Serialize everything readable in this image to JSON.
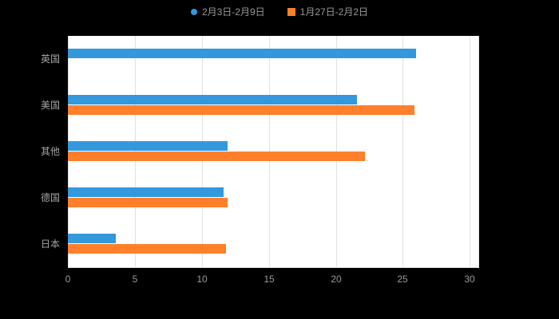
{
  "chart": {
    "background": "#000000",
    "plot_background": "#ffffff",
    "gridline_color": "#e2e2e2",
    "axis_label_color": "#999999",
    "category_label_color": "#a6a6a6"
  },
  "legend": {
    "items": [
      {
        "label": "2月3日-2月9日",
        "color": "#3398dc",
        "marker": "circle"
      },
      {
        "label": "1月27日-2月2日",
        "color": "#ff7f2a",
        "marker": "square"
      }
    ]
  },
  "chart_data": {
    "type": "bar",
    "orientation": "horizontal",
    "title": "",
    "categories": [
      "英国",
      "美国",
      "其他",
      "德国",
      "日本"
    ],
    "series": [
      {
        "name": "2月3日-2月9日",
        "color": "#3398dc",
        "values": [
          26,
          21.6,
          11.9,
          11.6,
          3.6
        ]
      },
      {
        "name": "1月27日-2月2日",
        "color": "#ff7f2a",
        "values": [
          0,
          25.9,
          22.2,
          11.9,
          11.8
        ]
      }
    ],
    "xlim": [
      0,
      30.7
    ],
    "xticks": [
      0,
      5,
      10,
      15,
      20,
      25,
      30
    ],
    "grid": true,
    "legend_position": "top"
  }
}
